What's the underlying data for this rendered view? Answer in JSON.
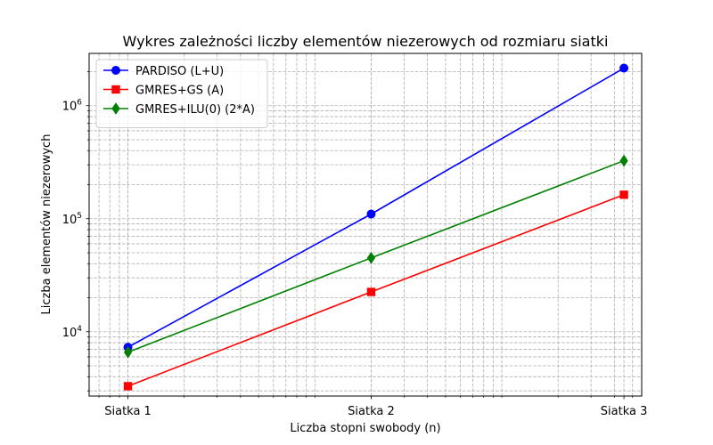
{
  "chart_data": {
    "type": "line",
    "title": "Wykres zależności liczby elementów niezerowych od rozmiaru siatki",
    "xlabel": "Liczba stopni swobody (n)",
    "ylabel": "Liczba elementów niezerowych",
    "categories": [
      "Siatka 1",
      "Siatka 2",
      "Siatka 3"
    ],
    "x": [
      1000,
      20000,
      450000
    ],
    "x_scale": "log",
    "xlim": [
      620,
      560000
    ],
    "y_scale": "log",
    "ylim": [
      2700,
      2900000
    ],
    "yticks": [
      {
        "value": 10000,
        "base": "10",
        "exp": "4"
      },
      {
        "value": 100000,
        "base": "10",
        "exp": "5"
      },
      {
        "value": 1000000,
        "base": "10",
        "exp": "6"
      }
    ],
    "grid": true,
    "legend_position": "top-left",
    "series": [
      {
        "name": "PARDISO (L+U)",
        "color": "#0000ff",
        "marker": "circle",
        "values": [
          7300,
          110000,
          2150000
        ]
      },
      {
        "name": "GMRES+GS (A)",
        "color": "#ff0000",
        "marker": "square",
        "values": [
          3300,
          22500,
          163000
        ]
      },
      {
        "name": "GMRES+ILU(0) (2*A)",
        "color": "#008000",
        "marker": "diamond",
        "values": [
          6600,
          45000,
          326000
        ]
      }
    ]
  }
}
